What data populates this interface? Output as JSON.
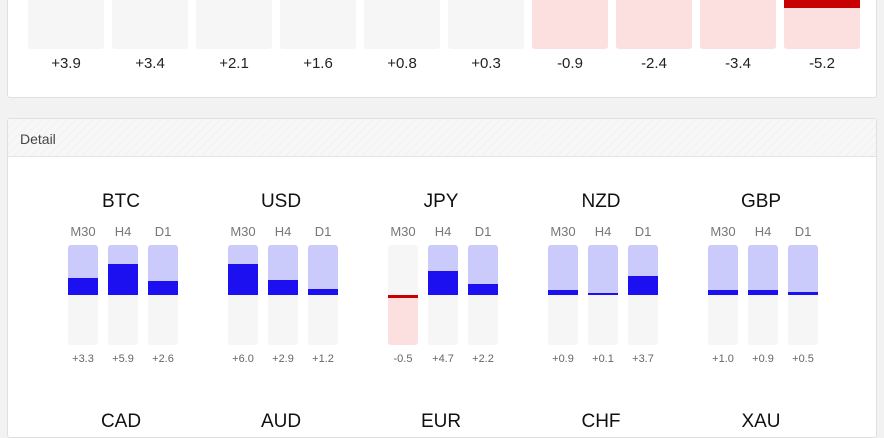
{
  "summary": {
    "values": [
      "+3.9",
      "+3.4",
      "+2.1",
      "+1.6",
      "+0.8",
      "+0.3",
      "-0.9",
      "-2.4",
      "-3.4",
      "-5.2"
    ],
    "bar_levels": [
      0,
      0,
      0,
      0,
      0,
      0,
      0,
      0,
      0,
      0.25
    ]
  },
  "detail": {
    "title": "Detail",
    "currencies": [
      {
        "name": "BTC",
        "timeframes": [
          {
            "label": "M30",
            "value": "+3.3"
          },
          {
            "label": "H4",
            "value": "+5.9"
          },
          {
            "label": "D1",
            "value": "+2.6"
          }
        ]
      },
      {
        "name": "USD",
        "timeframes": [
          {
            "label": "M30",
            "value": "+6.0"
          },
          {
            "label": "H4",
            "value": "+2.9"
          },
          {
            "label": "D1",
            "value": "+1.2"
          }
        ]
      },
      {
        "name": "JPY",
        "timeframes": [
          {
            "label": "M30",
            "value": "-0.5"
          },
          {
            "label": "H4",
            "value": "+4.7"
          },
          {
            "label": "D1",
            "value": "+2.2"
          }
        ]
      },
      {
        "name": "NZD",
        "timeframes": [
          {
            "label": "M30",
            "value": "+0.9"
          },
          {
            "label": "H4",
            "value": "+0.1"
          },
          {
            "label": "D1",
            "value": "+3.7"
          }
        ]
      },
      {
        "name": "GBP",
        "timeframes": [
          {
            "label": "M30",
            "value": "+1.0"
          },
          {
            "label": "H4",
            "value": "+0.9"
          },
          {
            "label": "D1",
            "value": "+0.5"
          }
        ]
      }
    ],
    "next_row_names": [
      "CAD",
      "AUD",
      "EUR",
      "CHF",
      "XAU"
    ]
  },
  "colors": {
    "positive_fill": "#1c10f0",
    "positive_area": "#cbcbfb",
    "negative_fill": "#c80000",
    "negative_area": "#fce0e0",
    "neutral_area": "#f6f6f6"
  }
}
